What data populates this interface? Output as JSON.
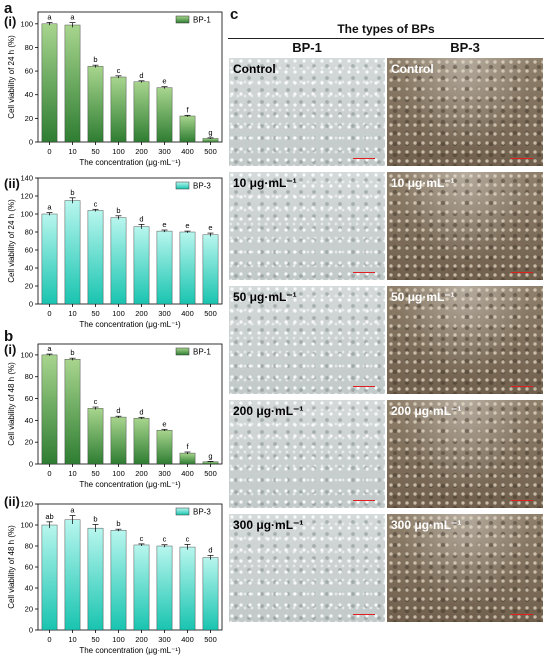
{
  "panels": {
    "a": "a",
    "b": "b",
    "c": "c",
    "i": "(i)",
    "ii": "(ii)"
  },
  "chart_data": [
    {
      "id": "a-i",
      "type": "bar",
      "categories": [
        "0",
        "10",
        "50",
        "100",
        "200",
        "300",
        "400",
        "500"
      ],
      "values": [
        100,
        99,
        64,
        55,
        51,
        46,
        22,
        3
      ],
      "errors": [
        1.2,
        2.0,
        1.0,
        1.0,
        0.8,
        0.8,
        0.6,
        0.5
      ],
      "letters": [
        "a",
        "a",
        "b",
        "c",
        "d",
        "e",
        "f",
        "g"
      ],
      "legend": "BP-1",
      "legend_position": "top-right",
      "xlabel": "The concentration (μg·mL⁻¹)",
      "ylabel": "Cell viability of 24 h (%)",
      "ylim": [
        0,
        110
      ],
      "yticks": [
        0,
        20,
        40,
        60,
        80,
        100
      ],
      "color_top": "#a8d58e",
      "color_bottom": "#2e7d32"
    },
    {
      "id": "a-ii",
      "type": "bar",
      "categories": [
        "0",
        "10",
        "50",
        "100",
        "200",
        "300",
        "400",
        "500"
      ],
      "values": [
        100,
        115,
        104,
        96,
        86,
        81,
        80,
        77
      ],
      "errors": [
        1.5,
        3.0,
        1.2,
        2.0,
        2.5,
        1.2,
        1.0,
        1.8
      ],
      "letters": [
        "a",
        "b",
        "c",
        "b",
        "d",
        "e",
        "e",
        "e"
      ],
      "legend": "BP-3",
      "legend_position": "top-right",
      "xlabel": "The concentration (μg·mL⁻¹)",
      "ylabel": "Cell viability of 24 h (%)",
      "ylim": [
        0,
        140
      ],
      "yticks": [
        0,
        20,
        40,
        60,
        80,
        100,
        120,
        140
      ],
      "color_top": "#b8f6ee",
      "color_bottom": "#19c4b0"
    },
    {
      "id": "b-i",
      "type": "bar",
      "categories": [
        "0",
        "10",
        "50",
        "100",
        "200",
        "300",
        "400",
        "500"
      ],
      "values": [
        100,
        96,
        51,
        43,
        42,
        31,
        10,
        2
      ],
      "errors": [
        0.8,
        1.0,
        1.2,
        0.8,
        0.8,
        0.8,
        1.0,
        0.4
      ],
      "letters": [
        "a",
        "b",
        "c",
        "d",
        "d",
        "e",
        "f",
        "g"
      ],
      "legend": "BP-1",
      "legend_position": "top-right",
      "xlabel": "The concentration (μg·mL⁻¹)",
      "ylabel": "Cell viability of 48 h (%)",
      "ylim": [
        0,
        110
      ],
      "yticks": [
        0,
        20,
        40,
        60,
        80,
        100
      ],
      "color_top": "#a8d58e",
      "color_bottom": "#2e7d32"
    },
    {
      "id": "b-ii",
      "type": "bar",
      "categories": [
        "0",
        "10",
        "50",
        "100",
        "200",
        "300",
        "400",
        "500"
      ],
      "values": [
        100,
        105,
        97,
        95,
        81,
        80,
        79,
        69
      ],
      "errors": [
        3.0,
        4.0,
        3.5,
        1.0,
        1.0,
        1.2,
        2.5,
        2.0
      ],
      "letters": [
        "ab",
        "a",
        "b",
        "b",
        "c",
        "c",
        "c",
        "d"
      ],
      "legend": "BP-3",
      "legend_position": "top-right",
      "xlabel": "The concentration (μg·mL⁻¹)",
      "ylabel": "Cell viability of 48 h (%)",
      "ylim": [
        0,
        120
      ],
      "yticks": [
        0,
        20,
        40,
        60,
        80,
        100,
        120
      ],
      "color_top": "#b8f6ee",
      "color_bottom": "#19c4b0"
    }
  ],
  "micrographs": {
    "header": "The types of BPs",
    "columns": [
      "BP-1",
      "BP-3"
    ],
    "rows": [
      {
        "label_bp1": "Control",
        "label_bp3": "Control"
      },
      {
        "label_bp1": "10 μg·mL⁻¹",
        "label_bp3": "10 μg·mL⁻¹"
      },
      {
        "label_bp1": "50 μg·mL⁻¹",
        "label_bp3": "50 μg·mL⁻¹"
      },
      {
        "label_bp1": "200 μg·mL⁻¹",
        "label_bp3": "200 μg·mL⁻¹"
      },
      {
        "label_bp1": "300 μg·mL⁻¹",
        "label_bp3": "300 μg·mL⁻¹"
      }
    ],
    "scale_bar_color": "#e02020"
  }
}
